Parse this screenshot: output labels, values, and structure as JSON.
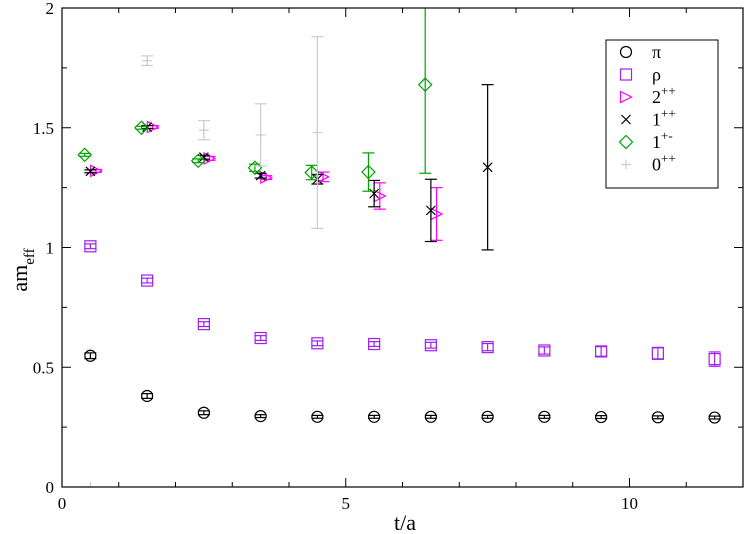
{
  "chart_data": {
    "type": "scatter",
    "xlabel": "t/a",
    "ylabel_main": "am",
    "ylabel_sub": "eff",
    "xlim": [
      0,
      12
    ],
    "ylim": [
      0,
      2
    ],
    "x_ticks": [
      0,
      5,
      10
    ],
    "y_ticks": [
      0,
      0.5,
      1,
      1.5,
      2
    ],
    "y_tick_labels": [
      "0",
      "0.5",
      "1",
      "1.5",
      "2"
    ],
    "grid": false,
    "legend_position": "top-right",
    "series": [
      {
        "name": "π",
        "sup": "",
        "marker": "circle",
        "color": "#000000",
        "points": [
          [
            0.5,
            0.548,
            0.012
          ],
          [
            1.5,
            0.38,
            0.01
          ],
          [
            2.5,
            0.31,
            0.008
          ],
          [
            3.5,
            0.296,
            0.006
          ],
          [
            4.5,
            0.293,
            0.006
          ],
          [
            5.5,
            0.293,
            0.006
          ],
          [
            6.5,
            0.293,
            0.006
          ],
          [
            7.5,
            0.293,
            0.006
          ],
          [
            8.5,
            0.293,
            0.006
          ],
          [
            9.5,
            0.292,
            0.006
          ],
          [
            10.5,
            0.291,
            0.006
          ],
          [
            11.5,
            0.29,
            0.006
          ]
        ]
      },
      {
        "name": "ρ",
        "sup": "",
        "marker": "square",
        "color": "#a020f0",
        "points": [
          [
            0.5,
            1.005,
            0.01
          ],
          [
            1.5,
            0.862,
            0.01
          ],
          [
            2.5,
            0.68,
            0.01
          ],
          [
            3.5,
            0.622,
            0.01
          ],
          [
            4.5,
            0.6,
            0.01
          ],
          [
            5.5,
            0.597,
            0.01
          ],
          [
            6.5,
            0.592,
            0.012
          ],
          [
            7.5,
            0.584,
            0.015
          ],
          [
            8.5,
            0.57,
            0.015
          ],
          [
            9.5,
            0.566,
            0.02
          ],
          [
            10.5,
            0.558,
            0.025
          ],
          [
            11.5,
            0.534,
            0.03
          ]
        ]
      },
      {
        "name": "2",
        "sup": "++",
        "marker": "triangle-right",
        "color": "#ff00ff",
        "points": [
          [
            0.6,
            1.32,
            0.006
          ],
          [
            1.6,
            1.503,
            0.006
          ],
          [
            2.6,
            1.372,
            0.008
          ],
          [
            3.6,
            1.292,
            0.008
          ],
          [
            4.6,
            1.295,
            0.02
          ],
          [
            5.6,
            1.215,
            0.055
          ],
          [
            6.6,
            1.14,
            0.11
          ]
        ]
      },
      {
        "name": "1",
        "sup": "++",
        "marker": "x",
        "color": "#000000",
        "points": [
          [
            0.5,
            1.318,
            0.006
          ],
          [
            1.5,
            1.503,
            0.006
          ],
          [
            2.5,
            1.377,
            0.008
          ],
          [
            3.5,
            1.3,
            0.01
          ],
          [
            4.5,
            1.285,
            0.02
          ],
          [
            5.5,
            1.225,
            0.055
          ],
          [
            6.5,
            1.155,
            0.13
          ],
          [
            7.5,
            1.335,
            0.345
          ]
        ]
      },
      {
        "name": "1",
        "sup": "+-",
        "marker": "diamond",
        "color": "#00a000",
        "points": [
          [
            0.4,
            1.387,
            0.006
          ],
          [
            1.4,
            1.5,
            0.006
          ],
          [
            2.4,
            1.362,
            0.008
          ],
          [
            3.4,
            1.333,
            0.015
          ],
          [
            4.4,
            1.313,
            0.03
          ],
          [
            5.4,
            1.315,
            0.08
          ],
          [
            6.4,
            1.68,
            0.37
          ]
        ]
      },
      {
        "name": "0",
        "sup": "++",
        "marker": "plus",
        "color": "#cccccc",
        "points": [
          [
            0.5,
            0.0,
            0.0
          ],
          [
            1.5,
            1.78,
            0.02
          ],
          [
            2.5,
            1.49,
            0.04
          ],
          [
            3.5,
            1.47,
            0.13
          ],
          [
            4.5,
            1.48,
            0.4
          ]
        ]
      }
    ]
  }
}
